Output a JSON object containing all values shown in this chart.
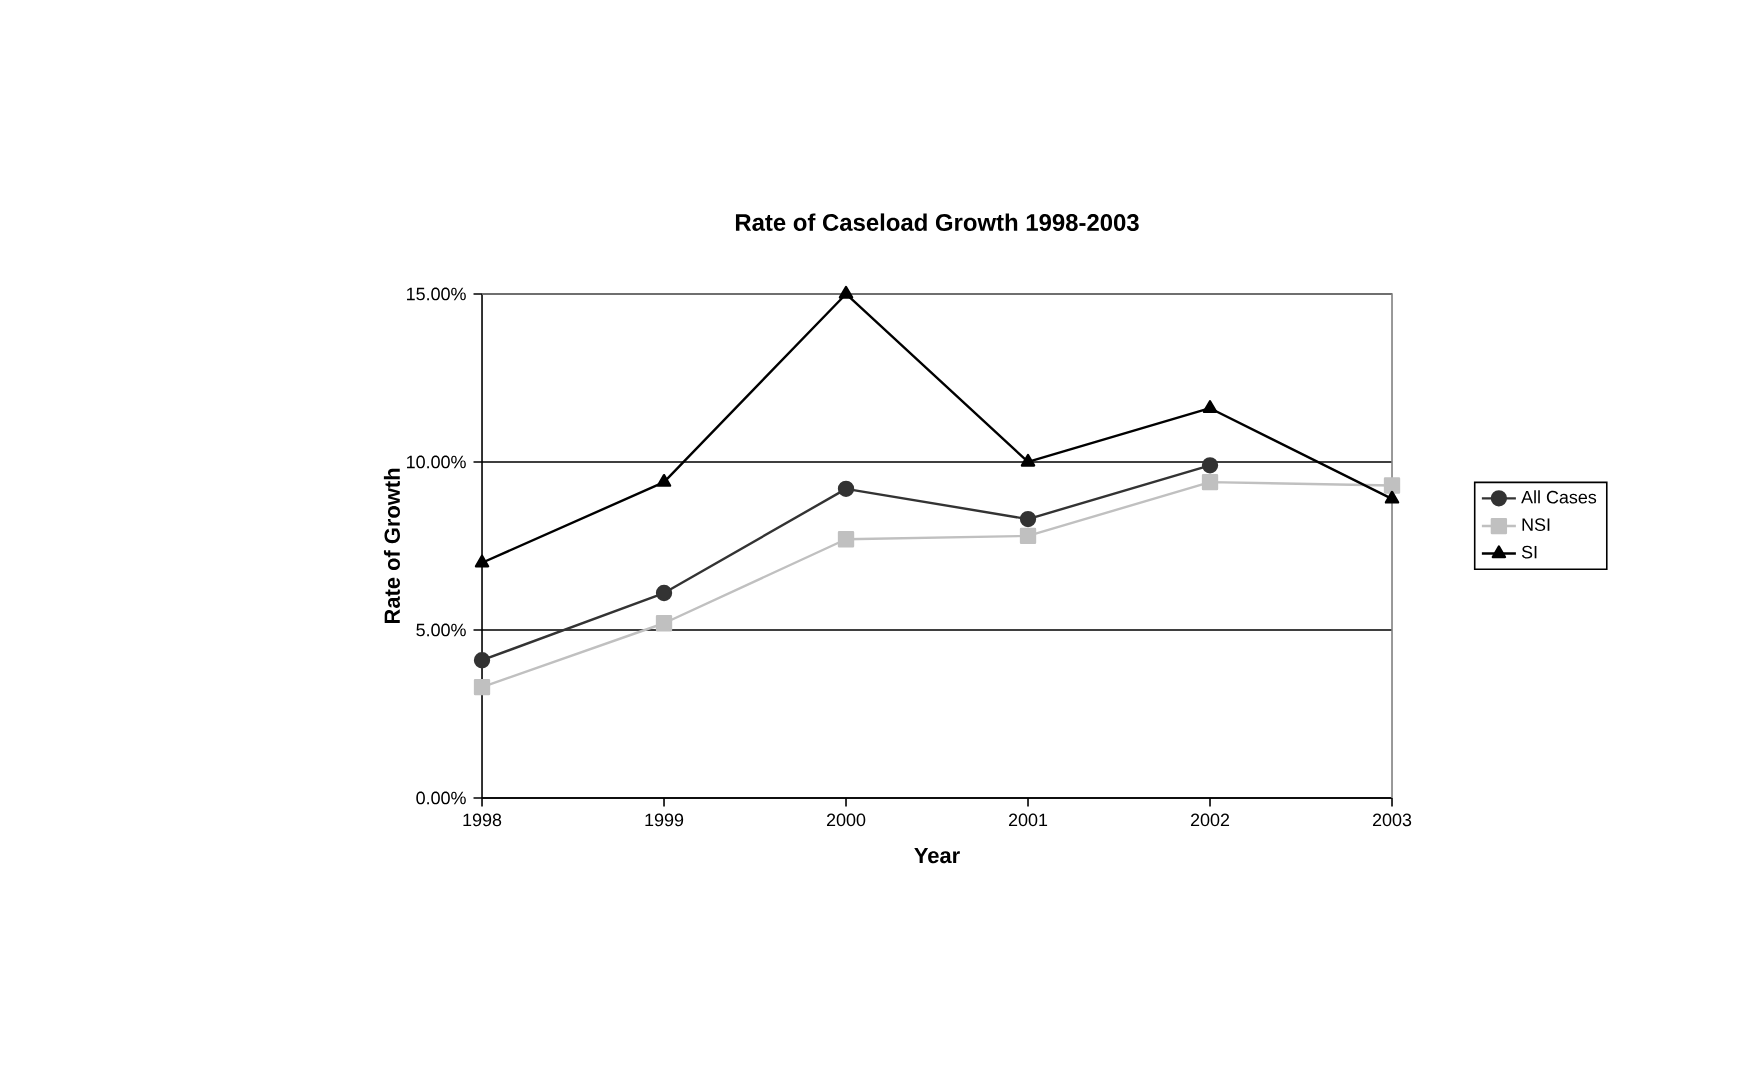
{
  "chart_data": {
    "type": "line",
    "title": "Rate of Caseload Growth 1998-2003",
    "xlabel": "Year",
    "ylabel": "Rate of Growth",
    "categories": [
      "1998",
      "1999",
      "2000",
      "2001",
      "2002",
      "2003"
    ],
    "series": [
      {
        "name": "All Cases",
        "color": "#333333",
        "marker": "circle",
        "values": [
          4.1,
          6.1,
          9.2,
          8.3,
          9.9,
          null
        ]
      },
      {
        "name": "NSI",
        "color": "#c0c0c0",
        "marker": "square",
        "values": [
          3.3,
          5.2,
          7.7,
          7.8,
          9.4,
          9.3
        ]
      },
      {
        "name": "SI",
        "color": "#000000",
        "marker": "triangle",
        "values": [
          7.0,
          9.4,
          15.0,
          10.0,
          11.6,
          8.9
        ]
      }
    ],
    "ylim": [
      0,
      15
    ],
    "yticks": [
      {
        "value": 0,
        "label": "0.00%"
      },
      {
        "value": 5,
        "label": "5.00%"
      },
      {
        "value": 10,
        "label": "10.00%"
      },
      {
        "value": 15,
        "label": "15.00%"
      }
    ],
    "grid": "y",
    "legend": "right",
    "line_style": "solid"
  }
}
